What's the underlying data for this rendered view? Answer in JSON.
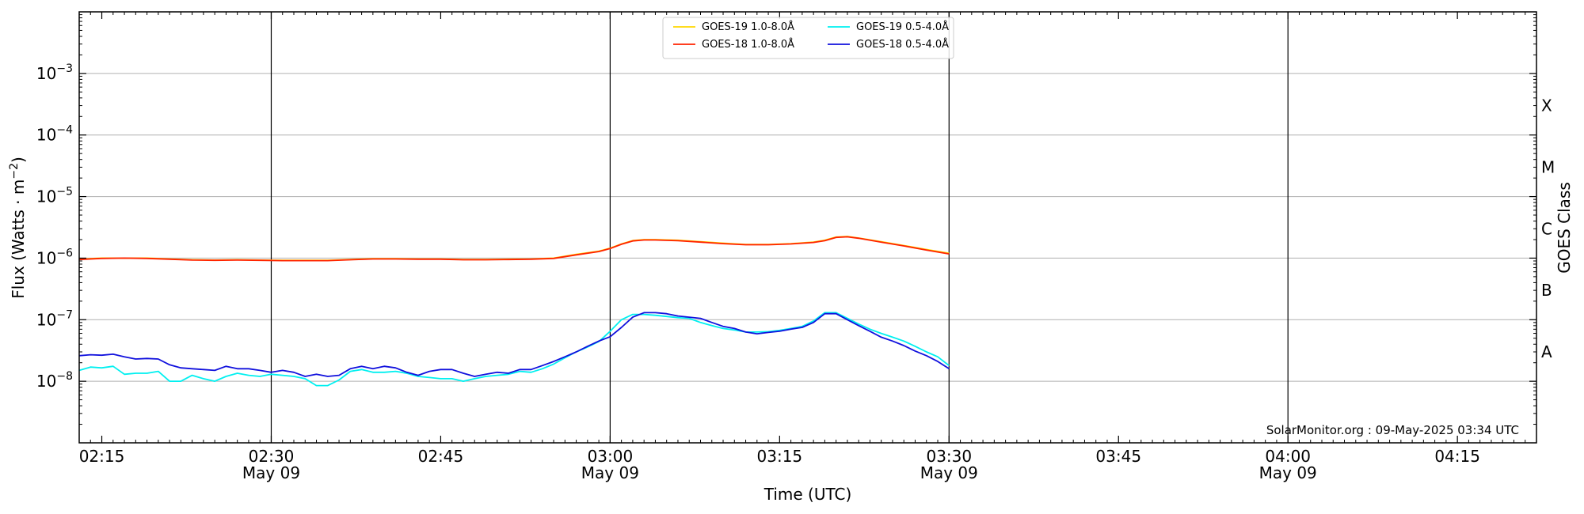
{
  "chart_data": {
    "type": "line",
    "title": "",
    "xlabel": "Time (UTC)",
    "ylabel": "Flux (Watts · m",
    "ylabel_sup": "−2",
    "ylabel_close": ")",
    "y2label": "GOES Class",
    "yscale": "log",
    "ylim": [
      1e-09,
      0.01
    ],
    "xlim": [
      "02:13",
      "04:22"
    ],
    "y_ticks": [
      {
        "value": 1e-08,
        "base": "10",
        "exp": "−8"
      },
      {
        "value": 1e-07,
        "base": "10",
        "exp": "−7"
      },
      {
        "value": 1e-06,
        "base": "10",
        "exp": "−6"
      },
      {
        "value": 1e-05,
        "base": "10",
        "exp": "−5"
      },
      {
        "value": 0.0001,
        "base": "10",
        "exp": "−4"
      },
      {
        "value": 0.001,
        "base": "10",
        "exp": "−3"
      }
    ],
    "goes_classes": [
      {
        "label": "A",
        "value": 3e-08
      },
      {
        "label": "B",
        "value": 3e-07
      },
      {
        "label": "C",
        "value": 3e-06
      },
      {
        "label": "M",
        "value": 3e-05
      },
      {
        "label": "X",
        "value": 0.0003
      }
    ],
    "x_ticks": [
      {
        "time": "02:15",
        "label": "02:15",
        "date": ""
      },
      {
        "time": "02:30",
        "label": "02:30",
        "date": "May 09"
      },
      {
        "time": "02:45",
        "label": "02:45",
        "date": ""
      },
      {
        "time": "03:00",
        "label": "03:00",
        "date": "May 09"
      },
      {
        "time": "03:15",
        "label": "03:15",
        "date": ""
      },
      {
        "time": "03:30",
        "label": "03:30",
        "date": "May 09"
      },
      {
        "time": "03:45",
        "label": "03:45",
        "date": ""
      },
      {
        "time": "04:00",
        "label": "04:00",
        "date": "May 09"
      },
      {
        "time": "04:15",
        "label": "04:15",
        "date": ""
      }
    ],
    "vertical_lines": [
      "02:30",
      "03:00",
      "03:30",
      "04:00"
    ],
    "hgrid": [
      1e-08,
      1e-07,
      1e-06,
      1e-05,
      0.0001,
      0.001
    ],
    "legend": {
      "placement": "top-center",
      "entries": [
        {
          "label": "GOES-19 1.0-8.0Å",
          "color": "#ffd700"
        },
        {
          "label": "GOES-18 1.0-8.0Å",
          "color": "#ff2200"
        },
        {
          "label": "GOES-19 0.5-4.0Å",
          "color": "#00f0f0"
        },
        {
          "label": "GOES-18 0.5-4.0Å",
          "color": "#1010dd"
        }
      ]
    },
    "credit": "SolarMonitor.org : 09-May-2025 03:34 UTC",
    "series": [
      {
        "name": "GOES-19 1.0-8.0Å",
        "color": "#ffd700",
        "x": [
          "02:13",
          "02:15",
          "02:17",
          "02:19",
          "02:21",
          "02:23",
          "02:25",
          "02:27",
          "02:29",
          "02:31",
          "02:33",
          "02:35",
          "02:37",
          "02:39",
          "02:41",
          "02:43",
          "02:45",
          "02:47",
          "02:49",
          "02:51",
          "02:53",
          "02:55",
          "02:57",
          "02:59",
          "03:00",
          "03:01",
          "03:02",
          "03:03",
          "03:04",
          "03:06",
          "03:08",
          "03:10",
          "03:12",
          "03:14",
          "03:16",
          "03:18",
          "03:19",
          "03:20",
          "03:21",
          "03:22",
          "03:24",
          "03:26",
          "03:28",
          "03:30"
        ],
        "y": [
          9.6e-07,
          1e-06,
          1e-06,
          1e-06,
          9.7e-07,
          9.4e-07,
          9.3e-07,
          9.4e-07,
          9.3e-07,
          9.2e-07,
          9.2e-07,
          9.2e-07,
          9.5e-07,
          9.8e-07,
          9.8e-07,
          9.7e-07,
          9.7e-07,
          9.5e-07,
          9.5e-07,
          9.6e-07,
          9.7e-07,
          1e-06,
          1.15e-06,
          1.3e-06,
          1.45e-06,
          1.7e-06,
          1.93e-06,
          2e-06,
          2e-06,
          1.95e-06,
          1.85e-06,
          1.75e-06,
          1.67e-06,
          1.67e-06,
          1.72e-06,
          1.82e-06,
          1.95e-06,
          2.2e-06,
          2.25e-06,
          2.12e-06,
          1.85e-06,
          1.6e-06,
          1.38e-06,
          1.2e-06
        ]
      },
      {
        "name": "GOES-18 1.0-8.0Å",
        "color": "#ff2200",
        "x": [
          "02:13",
          "02:15",
          "02:17",
          "02:19",
          "02:21",
          "02:23",
          "02:25",
          "02:27",
          "02:29",
          "02:31",
          "02:33",
          "02:35",
          "02:37",
          "02:39",
          "02:41",
          "02:43",
          "02:45",
          "02:47",
          "02:49",
          "02:51",
          "02:53",
          "02:55",
          "02:57",
          "02:59",
          "03:00",
          "03:01",
          "03:02",
          "03:03",
          "03:04",
          "03:06",
          "03:08",
          "03:10",
          "03:12",
          "03:14",
          "03:16",
          "03:18",
          "03:19",
          "03:20",
          "03:21",
          "03:22",
          "03:24",
          "03:26",
          "03:28",
          "03:30"
        ],
        "y": [
          9.5e-07,
          9.9e-07,
          1e-06,
          9.9e-07,
          9.6e-07,
          9.3e-07,
          9.2e-07,
          9.3e-07,
          9.2e-07,
          9.1e-07,
          9.1e-07,
          9.1e-07,
          9.4e-07,
          9.7e-07,
          9.7e-07,
          9.6e-07,
          9.6e-07,
          9.4e-07,
          9.4e-07,
          9.5e-07,
          9.6e-07,
          9.9e-07,
          1.13e-06,
          1.28e-06,
          1.43e-06,
          1.68e-06,
          1.9e-06,
          1.97e-06,
          1.97e-06,
          1.92e-06,
          1.82e-06,
          1.72e-06,
          1.65e-06,
          1.65e-06,
          1.7e-06,
          1.8e-06,
          1.92e-06,
          2.17e-06,
          2.22e-06,
          2.1e-06,
          1.82e-06,
          1.58e-06,
          1.35e-06,
          1.17e-06
        ]
      },
      {
        "name": "GOES-19 0.5-4.0Å",
        "color": "#00f0f0",
        "x": [
          "02:13",
          "02:14",
          "02:15",
          "02:16",
          "02:17",
          "02:18",
          "02:19",
          "02:20",
          "02:21",
          "02:22",
          "02:23",
          "02:24",
          "02:25",
          "02:26",
          "02:27",
          "02:28",
          "02:29",
          "02:30",
          "02:31",
          "02:32",
          "02:33",
          "02:34",
          "02:35",
          "02:36",
          "02:37",
          "02:38",
          "02:39",
          "02:40",
          "02:41",
          "02:42",
          "02:43",
          "02:44",
          "02:45",
          "02:46",
          "02:47",
          "02:48",
          "02:49",
          "02:50",
          "02:51",
          "02:52",
          "02:53",
          "02:54",
          "02:55",
          "02:56",
          "02:57",
          "02:58",
          "02:59",
          "03:00",
          "03:01",
          "03:02",
          "03:03",
          "03:04",
          "03:05",
          "03:06",
          "03:07",
          "03:08",
          "03:09",
          "03:10",
          "03:11",
          "03:12",
          "03:13",
          "03:14",
          "03:15",
          "03:16",
          "03:17",
          "03:18",
          "03:19",
          "03:20",
          "03:21",
          "03:22",
          "03:23",
          "03:24",
          "03:25",
          "03:26",
          "03:27",
          "03:28",
          "03:29",
          "03:30"
        ],
        "y": [
          1.5e-08,
          1.7e-08,
          1.65e-08,
          1.75e-08,
          1.3e-08,
          1.35e-08,
          1.35e-08,
          1.45e-08,
          1e-08,
          1e-08,
          1.25e-08,
          1.1e-08,
          1e-08,
          1.2e-08,
          1.35e-08,
          1.25e-08,
          1.2e-08,
          1.3e-08,
          1.25e-08,
          1.2e-08,
          1.1e-08,
          8.5e-09,
          8.5e-09,
          1.05e-08,
          1.45e-08,
          1.55e-08,
          1.4e-08,
          1.4e-08,
          1.45e-08,
          1.35e-08,
          1.2e-08,
          1.15e-08,
          1.1e-08,
          1.1e-08,
          1e-08,
          1.1e-08,
          1.2e-08,
          1.25e-08,
          1.3e-08,
          1.45e-08,
          1.4e-08,
          1.6e-08,
          1.9e-08,
          2.4e-08,
          3e-08,
          3.6e-08,
          4.4e-08,
          6.5e-08,
          1e-07,
          1.22e-07,
          1.22e-07,
          1.18e-07,
          1.13e-07,
          1.08e-07,
          1.05e-07,
          9e-08,
          8e-08,
          7.2e-08,
          6.8e-08,
          6.3e-08,
          6.3e-08,
          6.4e-08,
          6.7e-08,
          7.2e-08,
          7.8e-08,
          9.5e-08,
          1.3e-07,
          1.3e-07,
          1.05e-07,
          8.5e-08,
          7e-08,
          6e-08,
          5.2e-08,
          4.5e-08,
          3.7e-08,
          3e-08,
          2.5e-08,
          1.8e-08
        ]
      },
      {
        "name": "GOES-18 0.5-4.0Å",
        "color": "#1010dd",
        "x": [
          "02:13",
          "02:14",
          "02:15",
          "02:16",
          "02:17",
          "02:18",
          "02:19",
          "02:20",
          "02:21",
          "02:22",
          "02:23",
          "02:24",
          "02:25",
          "02:26",
          "02:27",
          "02:28",
          "02:29",
          "02:30",
          "02:31",
          "02:32",
          "02:33",
          "02:34",
          "02:35",
          "02:36",
          "02:37",
          "02:38",
          "02:39",
          "02:40",
          "02:41",
          "02:42",
          "02:43",
          "02:44",
          "02:45",
          "02:46",
          "02:47",
          "02:48",
          "02:49",
          "02:50",
          "02:51",
          "02:52",
          "02:53",
          "02:54",
          "02:55",
          "02:56",
          "02:57",
          "02:58",
          "02:59",
          "03:00",
          "03:01",
          "03:02",
          "03:03",
          "03:04",
          "03:05",
          "03:06",
          "03:07",
          "03:08",
          "03:09",
          "03:10",
          "03:11",
          "03:12",
          "03:13",
          "03:14",
          "03:15",
          "03:16",
          "03:17",
          "03:18",
          "03:19",
          "03:20",
          "03:21",
          "03:22",
          "03:23",
          "03:24",
          "03:25",
          "03:26",
          "03:27",
          "03:28",
          "03:29",
          "03:30"
        ],
        "y": [
          2.6e-08,
          2.7e-08,
          2.65e-08,
          2.75e-08,
          2.5e-08,
          2.3e-08,
          2.35e-08,
          2.3e-08,
          1.85e-08,
          1.65e-08,
          1.6e-08,
          1.55e-08,
          1.5e-08,
          1.75e-08,
          1.6e-08,
          1.6e-08,
          1.5e-08,
          1.4e-08,
          1.5e-08,
          1.4e-08,
          1.2e-08,
          1.3e-08,
          1.2e-08,
          1.25e-08,
          1.6e-08,
          1.75e-08,
          1.6e-08,
          1.75e-08,
          1.65e-08,
          1.4e-08,
          1.25e-08,
          1.45e-08,
          1.55e-08,
          1.55e-08,
          1.35e-08,
          1.2e-08,
          1.3e-08,
          1.4e-08,
          1.35e-08,
          1.55e-08,
          1.55e-08,
          1.8e-08,
          2.1e-08,
          2.5e-08,
          3e-08,
          3.7e-08,
          4.5e-08,
          5.3e-08,
          7.5e-08,
          1.1e-07,
          1.3e-07,
          1.3e-07,
          1.25e-07,
          1.15e-07,
          1.1e-07,
          1.05e-07,
          9e-08,
          7.8e-08,
          7.2e-08,
          6.3e-08,
          5.9e-08,
          6.2e-08,
          6.5e-08,
          7e-08,
          7.5e-08,
          9e-08,
          1.25e-07,
          1.25e-07,
          1e-07,
          8e-08,
          6.5e-08,
          5.2e-08,
          4.5e-08,
          3.8e-08,
          3.1e-08,
          2.6e-08,
          2.1e-08,
          1.6e-08
        ]
      }
    ]
  }
}
